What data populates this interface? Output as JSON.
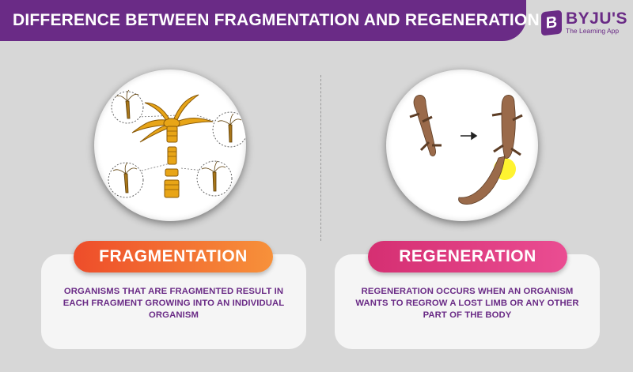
{
  "header": {
    "title": "DIFFERENCE BETWEEN FRAGMENTATION AND REGENERATION"
  },
  "logo": {
    "letter": "B",
    "name": "BYJU'S",
    "tagline": "The Learning App"
  },
  "fragmentation": {
    "label": "FRAGMENTATION",
    "description": "ORGANISMS THAT ARE FRAGMENTED RESULT IN EACH FRAGMENT GROWING INTO AN INDIVIDUAL ORGANISM",
    "illustration": "hydra-fragmentation-illustration",
    "colors": {
      "label_start": "#ee4d2a",
      "label_end": "#f7913a",
      "organism": "#e8a517"
    }
  },
  "regeneration": {
    "label": "REGENERATION",
    "description": "REGENERATION OCCURS WHEN AN ORGANISM WANTS TO REGROW A LOST LIMB OR ANY OTHER PART OF THE BODY",
    "illustration": "lizard-tail-regeneration-illustration",
    "colors": {
      "label_start": "#d52f72",
      "label_end": "#ea4d92",
      "lizard": "#9a6a4a",
      "highlight": "#fff21a"
    }
  },
  "theme": {
    "brand": "#6a2b86",
    "background": "#d7d7d7",
    "card": "#f5f5f5"
  }
}
